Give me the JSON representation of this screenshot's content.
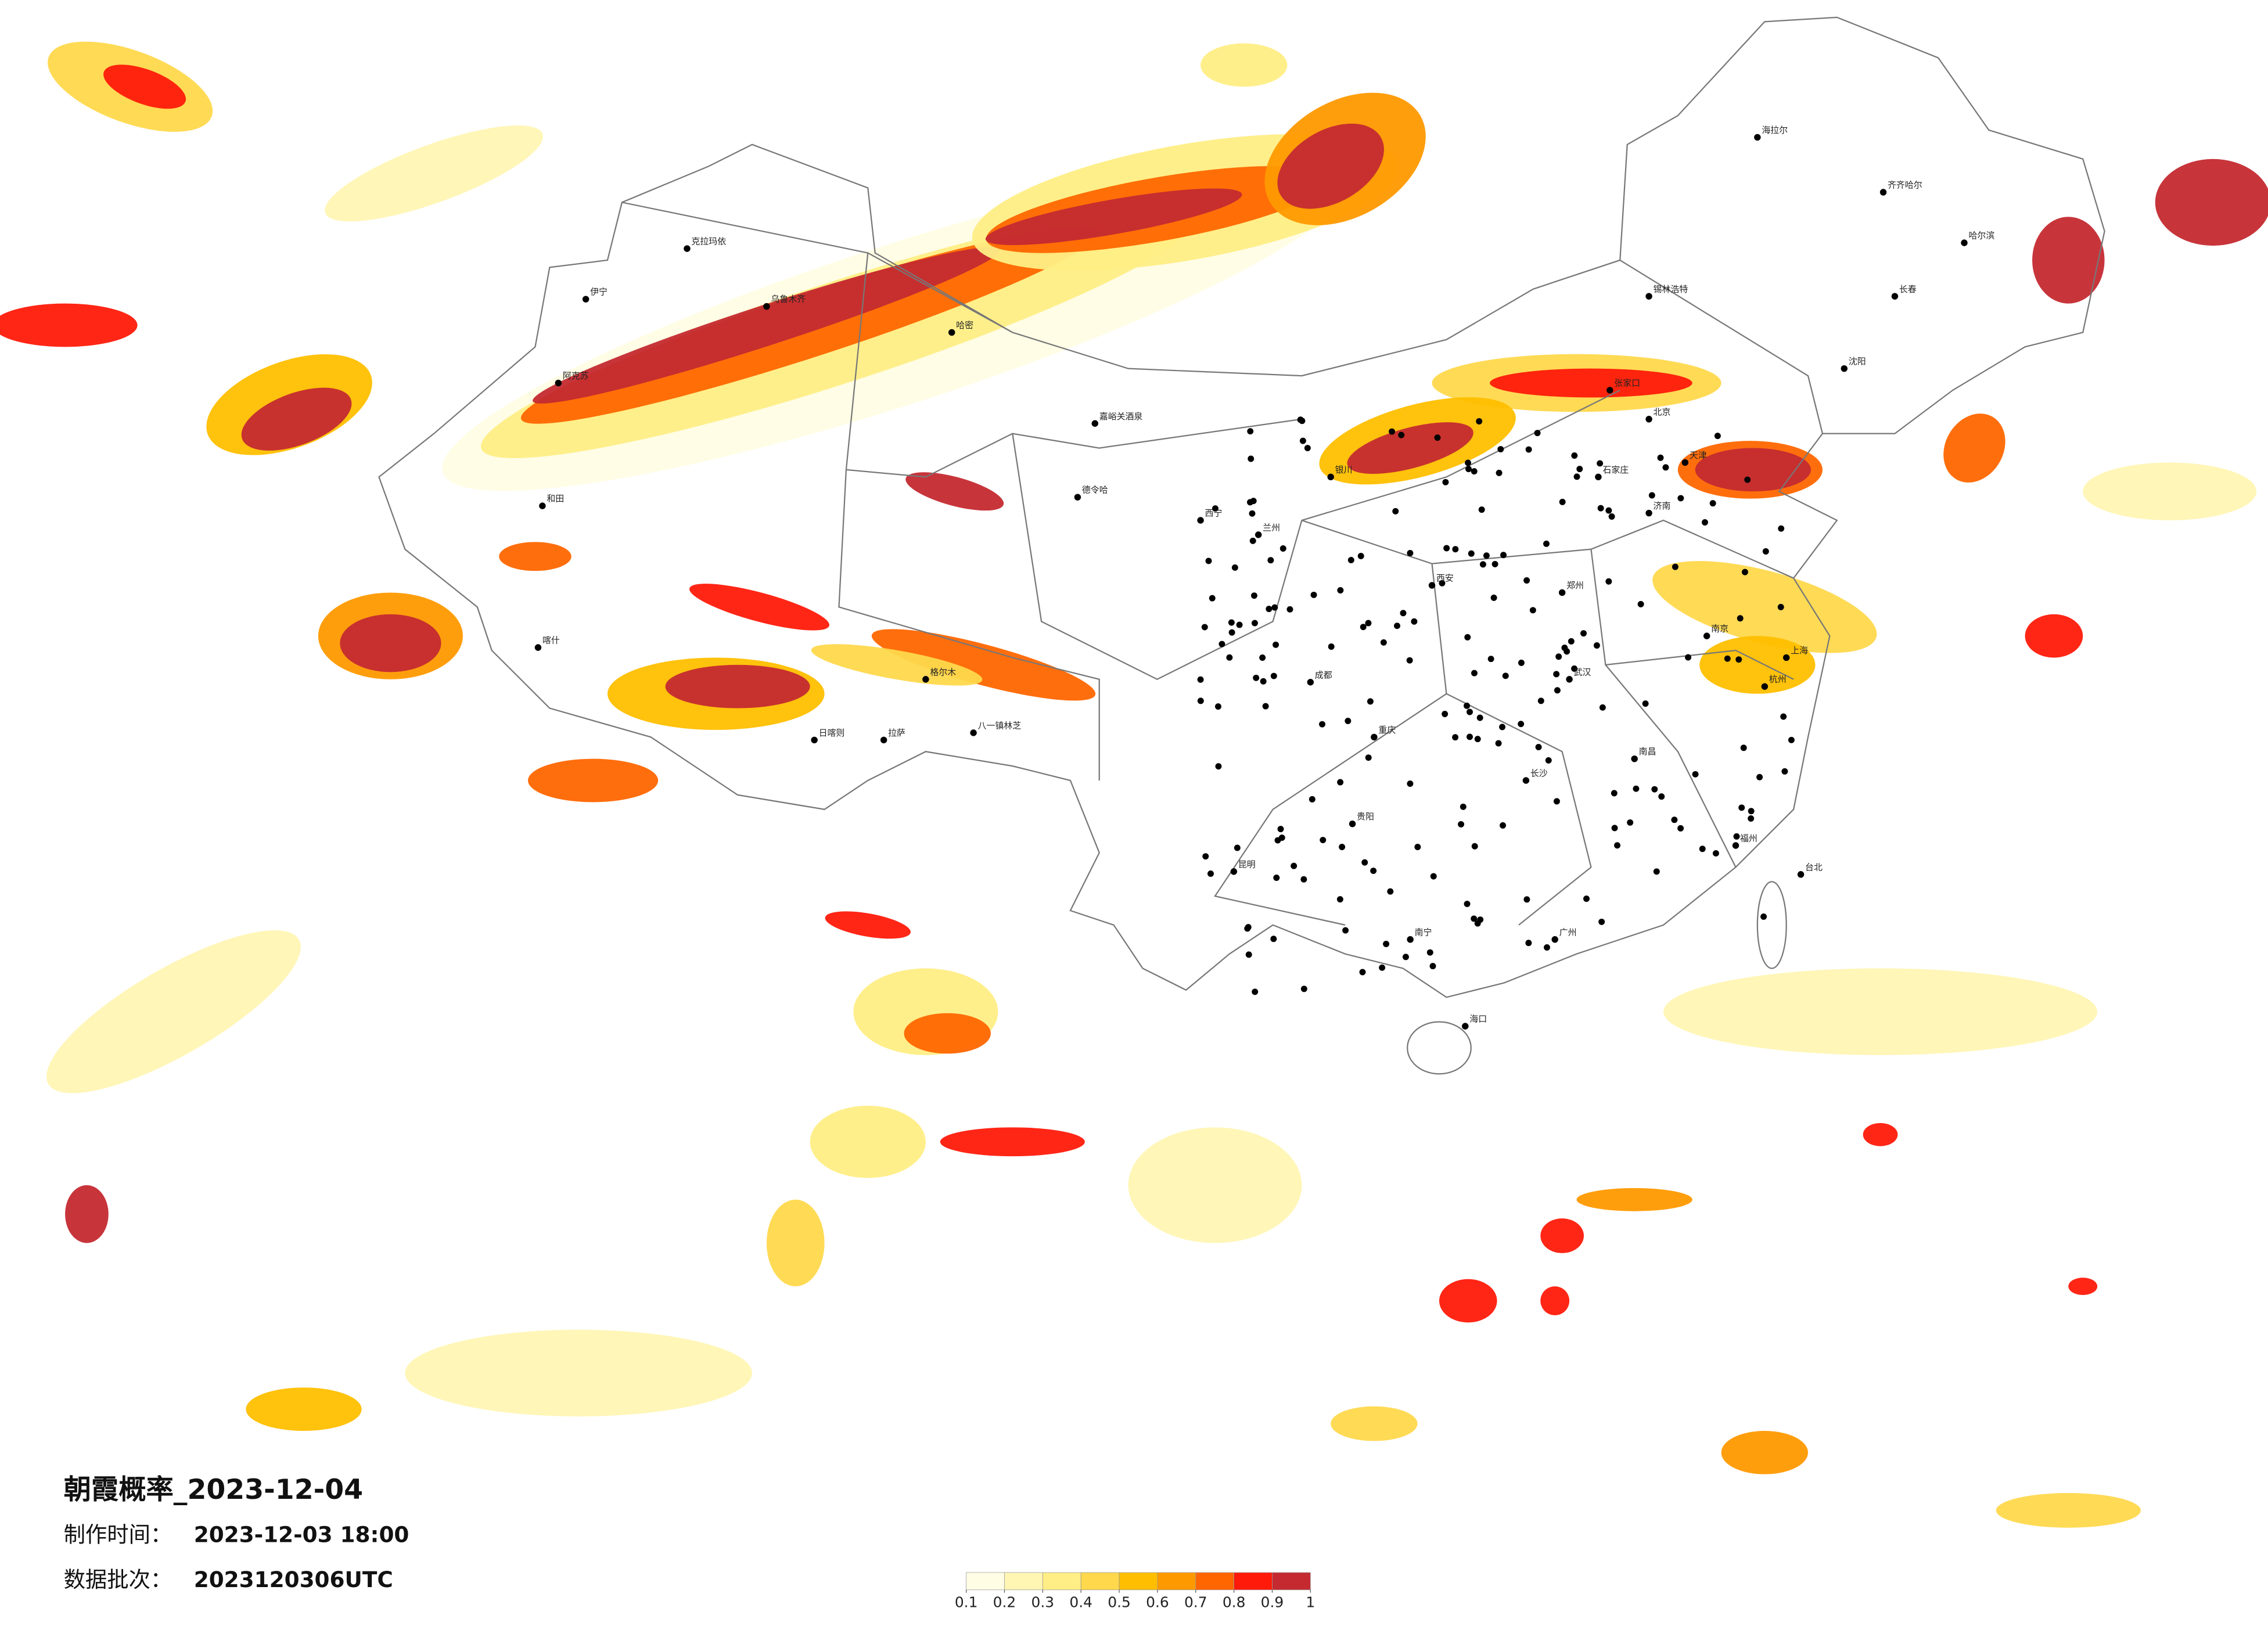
{
  "map": {
    "title": "朝霞概率_2023-12-04",
    "made_label": "制作时间：",
    "made_time": "2023-12-03 18:00",
    "batch_label": "数据批次：",
    "batch": "2023120306UTC",
    "legend": {
      "ticks": [
        0.1,
        0.2,
        0.3,
        0.4,
        0.5,
        0.6,
        0.7,
        0.8,
        0.9,
        1
      ],
      "colors": [
        "#fffde4",
        "#fff6b4",
        "#ffee85",
        "#ffd84c",
        "#ffbf00",
        "#ff9900",
        "#ff6600",
        "#ff1a0a",
        "#c42a30"
      ]
    },
    "cities": [
      "克拉玛依",
      "伊宁",
      "乌鲁木齐",
      "阿克苏",
      "和田",
      "喀什",
      "哈密",
      "嘉峪关酒泉",
      "德令哈",
      "格尔木",
      "拉萨",
      "日喀则",
      "八一镇林芝",
      "海拉尔",
      "齐齐哈尔",
      "哈尔滨",
      "锡林浩特",
      "张家口",
      "北京",
      "天津",
      "石家庄",
      "郑州",
      "西安",
      "成都",
      "重庆",
      "武汉",
      "长沙",
      "南昌",
      "贵阳",
      "昆明",
      "南宁",
      "广州",
      "福州",
      "杭州",
      "上海",
      "南京",
      "济南",
      "沈阳",
      "长春",
      "海口",
      "台北",
      "兰州",
      "银川",
      "西宁"
    ]
  }
}
